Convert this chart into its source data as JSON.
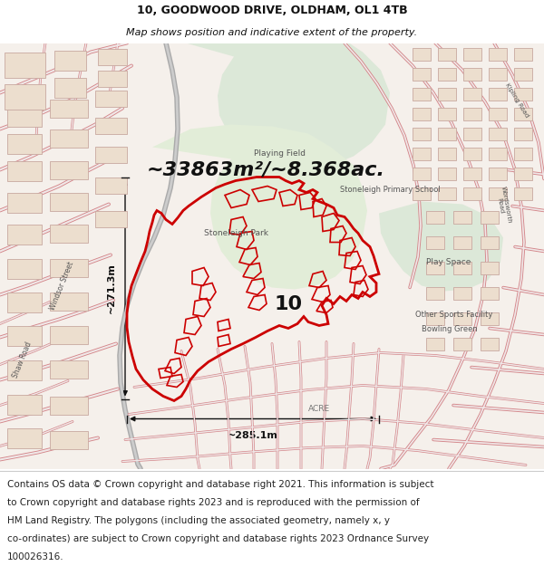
{
  "title_line1": "10, GOODWOOD DRIVE, OLDHAM, OL1 4TB",
  "title_line2": "Map shows position and indicative extent of the property.",
  "area_text": "~33863m²/~8.368ac.",
  "width_label": "~285.1m",
  "height_label": "~271.3m",
  "number_label": "10",
  "footer_text": "Contains OS data © Crown copyright and database right 2021. This information is subject to Crown copyright and database rights 2023 and is reproduced with the permission of HM Land Registry. The polygons (including the associated geometry, namely x, y co-ordinates) are subject to Crown copyright and database rights 2023 Ordnance Survey 100026316.",
  "map_bg": "#f5f0eb",
  "road_color": "#d4868a",
  "road_fill": "#f0e8e8",
  "green_color": "#dce8d8",
  "green_dark": "#c8dcc4",
  "title_fontsize": 9,
  "subtitle_fontsize": 8,
  "area_fontsize": 16,
  "label_fontsize": 8,
  "number_fontsize": 16,
  "footer_fontsize": 7.5,
  "fig_width": 6.0,
  "fig_height": 6.25,
  "dpi": 100,
  "red_polygon_color": "#cc0000",
  "arrow_color": "#111111",
  "white": "#ffffff",
  "black": "#111111",
  "map_text_color": "#555555",
  "building_fill": "#ecdece",
  "building_edge": "#c8a8a0"
}
